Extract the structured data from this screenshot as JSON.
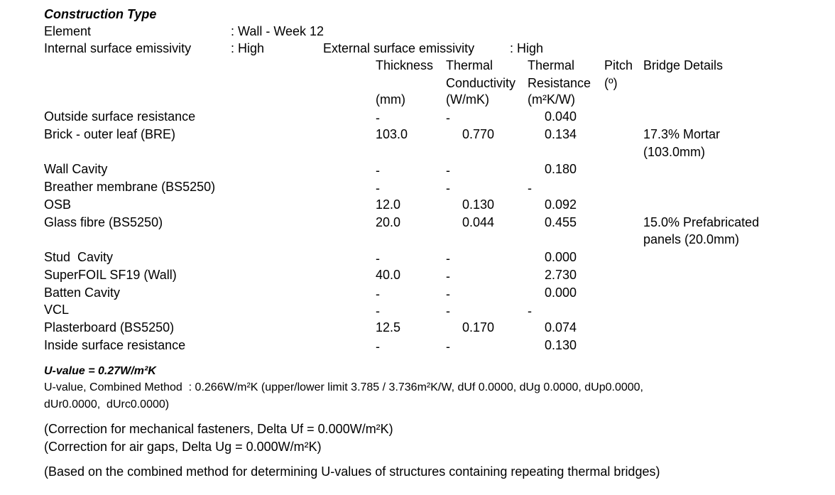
{
  "title": "Construction Type",
  "element": {
    "label": "Element",
    "value": ": Wall - Week 12"
  },
  "emissivity": {
    "internal_label": "Internal surface emissivity",
    "internal_value": ": High",
    "external_label": "External surface emissivity",
    "external_value": ": High"
  },
  "columns": {
    "thickness": {
      "lines": [
        "Thickness"
      ],
      "unit": "(mm)"
    },
    "conductivity": {
      "lines": [
        "Thermal",
        "Conductivity"
      ],
      "unit": "(W/mK)"
    },
    "resistance": {
      "lines": [
        "Thermal",
        "Resistance"
      ],
      "unit": "(m²K/W)"
    },
    "pitch": {
      "lines": [
        "Pitch",
        "(º)"
      ]
    },
    "bridge": {
      "lines": [
        "Bridge Details"
      ]
    }
  },
  "rows": [
    {
      "name": "Outside surface resistance",
      "thickness": "-",
      "conductivity": "-",
      "resistance": "0.040"
    },
    {
      "name": "Brick - outer leaf (BRE)",
      "thickness": "103.0",
      "conductivity": "0.770",
      "resistance": "0.134",
      "bridge": [
        "17.3% Mortar",
        "(103.0mm)"
      ]
    },
    {
      "name": "Wall Cavity",
      "thickness": "-",
      "conductivity": "-",
      "resistance": "0.180"
    },
    {
      "name": "Breather membrane (BS5250)",
      "thickness": "-",
      "conductivity": "-",
      "resistance": "-"
    },
    {
      "name": "OSB",
      "thickness": "12.0",
      "conductivity": "0.130",
      "resistance": "0.092"
    },
    {
      "name": "Glass fibre (BS5250)",
      "thickness": "20.0",
      "conductivity": "0.044",
      "resistance": "0.455",
      "bridge": [
        "15.0% Prefabricated",
        "panels (20.0mm)"
      ]
    },
    {
      "name": "Stud  Cavity",
      "thickness": "-",
      "conductivity": "-",
      "resistance": "0.000"
    },
    {
      "name": "SuperFOIL SF19 (Wall)",
      "thickness": "40.0",
      "conductivity": "-",
      "resistance": "2.730"
    },
    {
      "name": "Batten Cavity",
      "thickness": "-",
      "conductivity": "-",
      "resistance": "0.000"
    },
    {
      "name": "VCL",
      "thickness": "-",
      "conductivity": "-",
      "resistance": "-"
    },
    {
      "name": "Plasterboard (BS5250)",
      "thickness": "12.5",
      "conductivity": "0.170",
      "resistance": "0.074"
    },
    {
      "name": "Inside surface resistance",
      "thickness": "-",
      "conductivity": "-",
      "resistance": "0.130"
    }
  ],
  "u_value": "U-value = 0.27W/m²K",
  "combined_method": [
    "U-value, Combined Method  : 0.266W/m²K (upper/lower limit 3.785 / 3.736m²K/W, dUf 0.0000, dUg 0.0000, dUp0.0000,",
    "dUr0.0000,  dUrc0.0000)"
  ],
  "corrections": [
    "(Correction for mechanical fasteners, Delta Uf = 0.000W/m²K)",
    "(Correction for air gaps, Delta Ug = 0.000W/m²K)"
  ],
  "basis": "(Based on the combined method for determining U-values of structures containing repeating thermal bridges)"
}
